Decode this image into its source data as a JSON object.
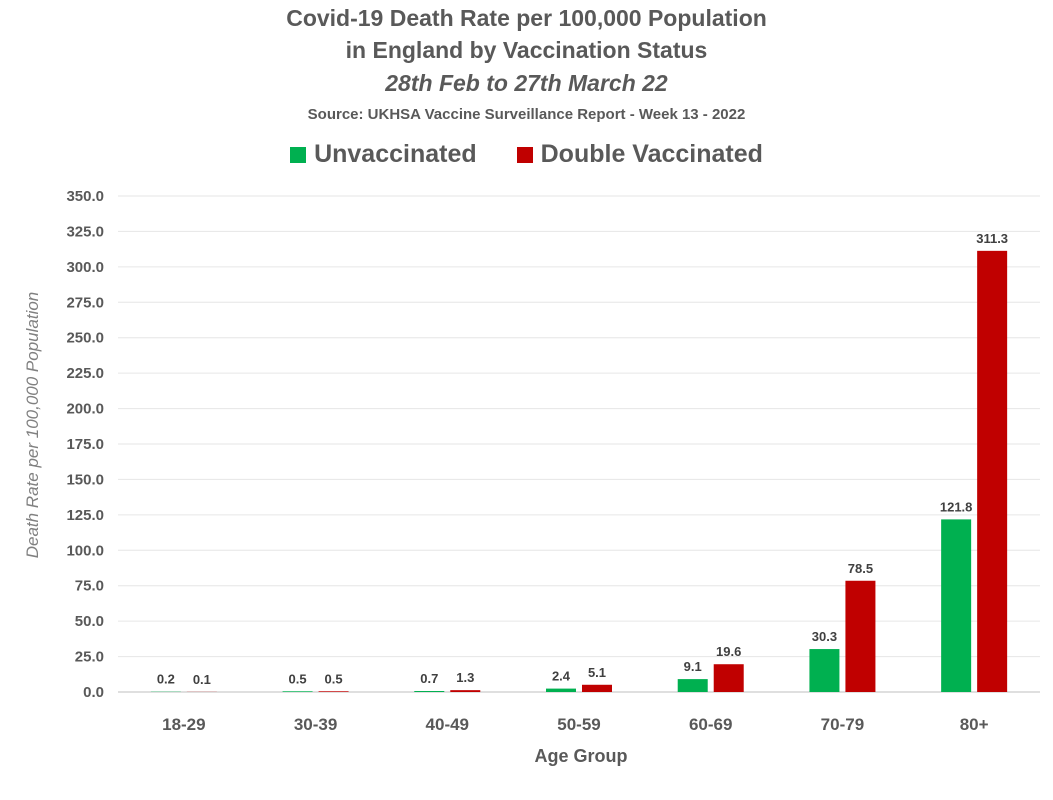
{
  "chart_data": {
    "type": "bar",
    "title": "Covid-19 Death Rate per 100,000 Population",
    "title_line2": "in England by Vaccination Status",
    "subtitle": "28th Feb to 27th March 22",
    "source": "Source: UKHSA Vaccine Surveillance Report - Week 13 - 2022",
    "xlabel": "Age Group",
    "ylabel": "Death Rate per 100,000 Population",
    "categories": [
      "18-29",
      "30-39",
      "40-49",
      "50-59",
      "60-69",
      "70-79",
      "80+"
    ],
    "series": [
      {
        "name": "Unvaccinated",
        "color": "#00B050",
        "values": [
          0.2,
          0.5,
          0.7,
          2.4,
          9.1,
          30.3,
          121.8
        ],
        "labels": [
          "0.2",
          "0.5",
          "0.7",
          "2.4",
          "9.1",
          "30.3",
          "121.8"
        ]
      },
      {
        "name": "Double Vaccinated",
        "color": "#C00000",
        "values": [
          0.1,
          0.5,
          1.3,
          5.1,
          19.6,
          78.5,
          311.3
        ],
        "labels": [
          "0.1",
          "0.5",
          "1.3",
          "5.1",
          "19.6",
          "78.5",
          "311.3"
        ]
      }
    ],
    "ylim": [
      0,
      350
    ],
    "yticks": [
      "0.0",
      "25.0",
      "50.0",
      "75.0",
      "100.0",
      "125.0",
      "150.0",
      "175.0",
      "200.0",
      "225.0",
      "250.0",
      "275.0",
      "300.0",
      "325.0",
      "350.0"
    ],
    "grid": true,
    "legend_position": "top-center"
  }
}
